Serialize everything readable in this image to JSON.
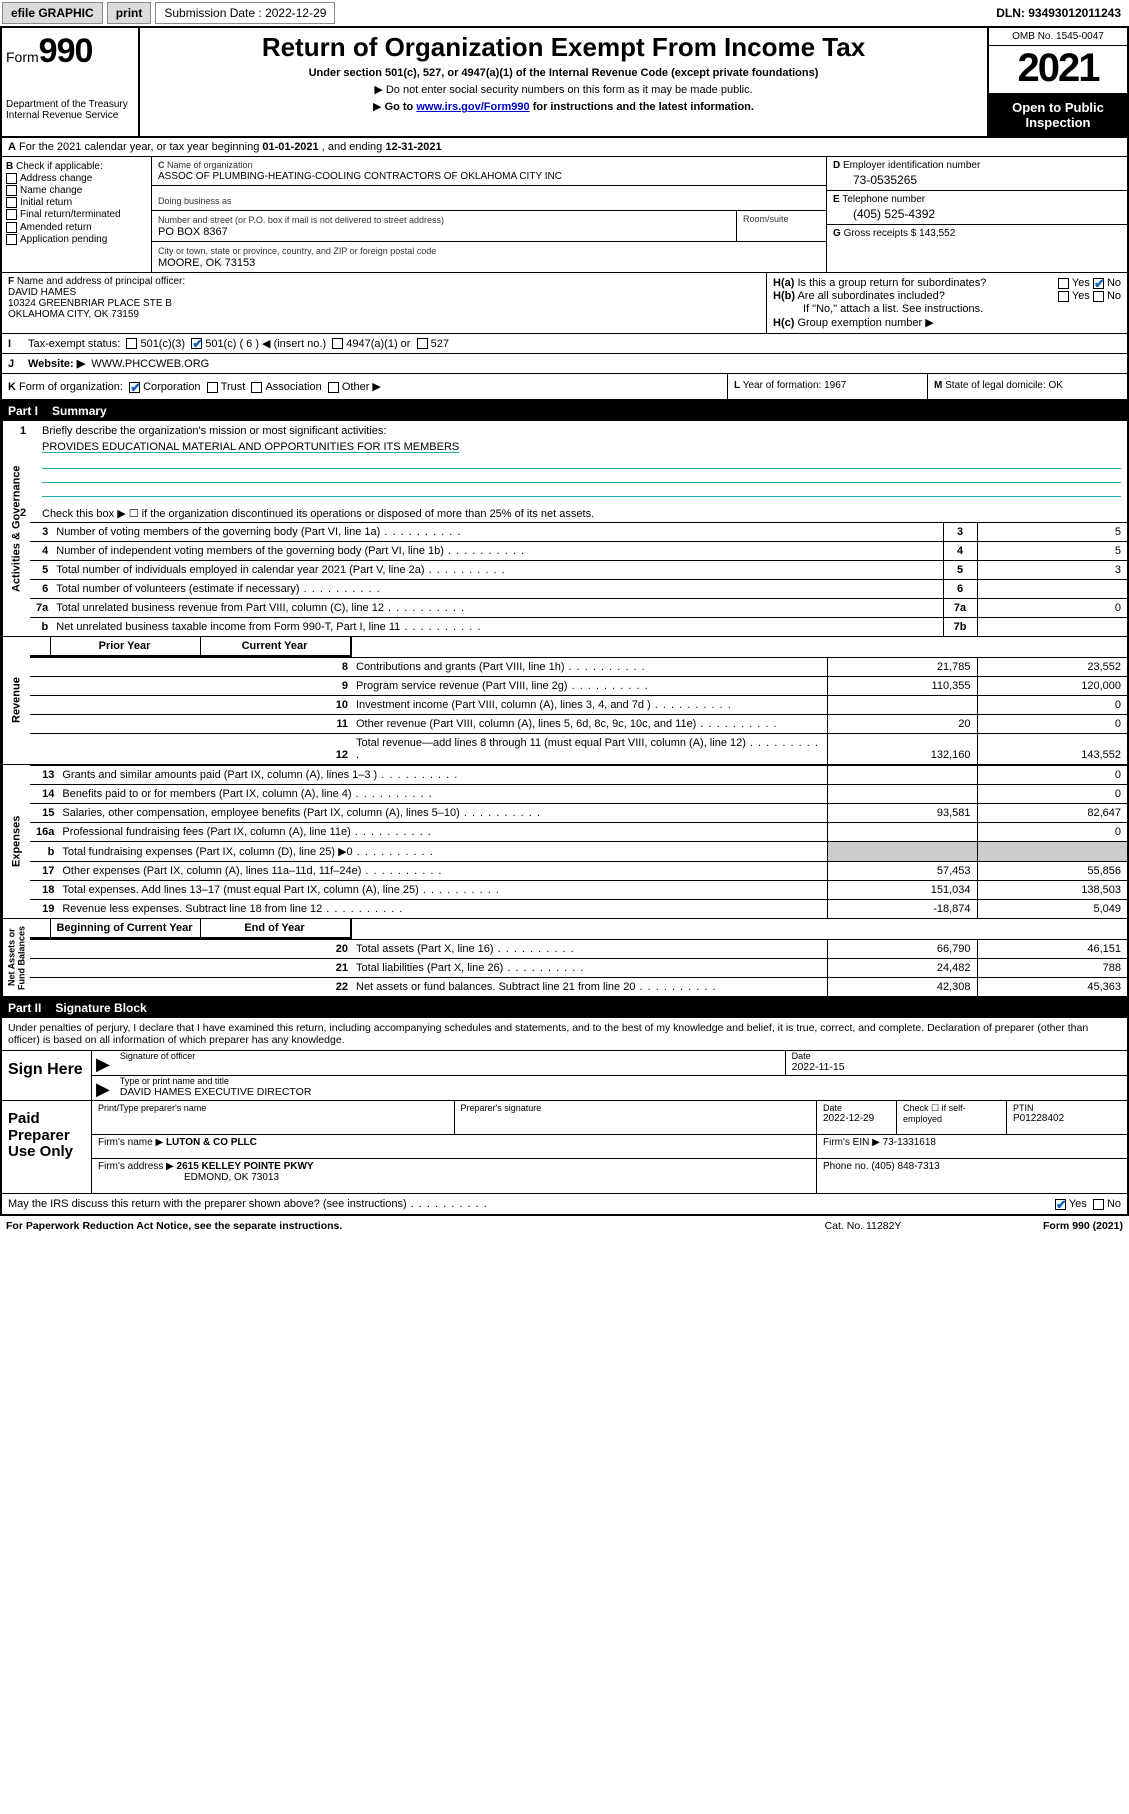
{
  "topbar": {
    "efile": "efile GRAPHIC",
    "print": "print",
    "subdate_label": "Submission Date : 2022-12-29",
    "dln": "DLN: 93493012011243"
  },
  "header": {
    "form_prefix": "Form",
    "form_no": "990",
    "dept": "Department of the Treasury\nInternal Revenue Service",
    "title": "Return of Organization Exempt From Income Tax",
    "subtitle": "Under section 501(c), 527, or 4947(a)(1) of the Internal Revenue Code (except private foundations)",
    "note1": "Do not enter social security numbers on this form as it may be made public.",
    "note2_pre": "Go to ",
    "note2_link": "www.irs.gov/Form990",
    "note2_post": " for instructions and the latest information.",
    "omb": "OMB No. 1545-0047",
    "year": "2021",
    "open": "Open to Public Inspection"
  },
  "A": {
    "text_pre": "For the 2021 calendar year, or tax year beginning ",
    "begin": "01-01-2021",
    "mid": " , and ending ",
    "end": "12-31-2021"
  },
  "B": {
    "label": "Check if applicable:",
    "opts": [
      "Address change",
      "Name change",
      "Initial return",
      "Final return/terminated",
      "Amended return",
      "Application pending"
    ]
  },
  "C": {
    "name_label": "Name of organization",
    "name": "ASSOC OF PLUMBING-HEATING-COOLING CONTRACTORS OF OKLAHOMA CITY INC",
    "dba_label": "Doing business as",
    "street_label": "Number and street (or P.O. box if mail is not delivered to street address)",
    "room_label": "Room/suite",
    "street": "PO BOX 8367",
    "city_label": "City or town, state or province, country, and ZIP or foreign postal code",
    "city": "MOORE, OK  73153"
  },
  "D": {
    "label": "Employer identification number",
    "val": "73-0535265"
  },
  "E": {
    "label": "Telephone number",
    "val": "(405) 525-4392"
  },
  "G": {
    "label": "Gross receipts $",
    "val": "143,552"
  },
  "F": {
    "label": "Name and address of principal officer:",
    "name": "DAVID HAMES",
    "addr1": "10324 GREENBRIAR PLACE STE B",
    "addr2": "OKLAHOMA CITY, OK  73159"
  },
  "H": {
    "a": "Is this a group return for subordinates?",
    "a_ans_yes": "Yes",
    "a_ans_no": "No",
    "b": "Are all subordinates included?",
    "b_note": "If \"No,\" attach a list. See instructions.",
    "c": "Group exemption number ▶"
  },
  "I": {
    "label": "Tax-exempt status:",
    "o1": "501(c)(3)",
    "o2": "501(c) ( 6 ) ◀ (insert no.)",
    "o3": "4947(a)(1) or",
    "o4": "527"
  },
  "J": {
    "label": "Website: ▶",
    "val": "WWW.PHCCWEB.ORG"
  },
  "K": {
    "label": "Form of organization:",
    "o1": "Corporation",
    "o2": "Trust",
    "o3": "Association",
    "o4": "Other ▶"
  },
  "L": {
    "label": "Year of formation:",
    "val": "1967"
  },
  "M": {
    "label": "State of legal domicile:",
    "val": "OK"
  },
  "partI": {
    "hdr_part": "Part I",
    "hdr_title": "Summary",
    "l1": "Briefly describe the organization's mission or most significant activities:",
    "mission": "PROVIDES EDUCATIONAL MATERIAL AND OPPORTUNITIES FOR ITS MEMBERS",
    "l2": "Check this box ▶ ☐  if the organization discontinued its operations or disposed of more than 25% of its net assets.",
    "vtab_gov": "Activities & Governance",
    "vtab_rev": "Revenue",
    "vtab_exp": "Expenses",
    "vtab_net": "Net Assets or Fund Balances",
    "col_py": "Prior Year",
    "col_cy": "Current Year",
    "col_boy": "Beginning of Current Year",
    "col_eoy": "End of Year",
    "rows_gov": [
      {
        "n": "3",
        "lab": "Number of voting members of the governing body (Part VI, line 1a)",
        "box": "3",
        "v": "5"
      },
      {
        "n": "4",
        "lab": "Number of independent voting members of the governing body (Part VI, line 1b)",
        "box": "4",
        "v": "5"
      },
      {
        "n": "5",
        "lab": "Total number of individuals employed in calendar year 2021 (Part V, line 2a)",
        "box": "5",
        "v": "3"
      },
      {
        "n": "6",
        "lab": "Total number of volunteers (estimate if necessary)",
        "box": "6",
        "v": ""
      },
      {
        "n": "7a",
        "lab": "Total unrelated business revenue from Part VIII, column (C), line 12",
        "box": "7a",
        "v": "0"
      },
      {
        "n": "b",
        "lab": "Net unrelated business taxable income from Form 990-T, Part I, line 11",
        "box": "7b",
        "v": ""
      }
    ],
    "rows_rev": [
      {
        "n": "8",
        "lab": "Contributions and grants (Part VIII, line 1h)",
        "py": "21,785",
        "cy": "23,552"
      },
      {
        "n": "9",
        "lab": "Program service revenue (Part VIII, line 2g)",
        "py": "110,355",
        "cy": "120,000"
      },
      {
        "n": "10",
        "lab": "Investment income (Part VIII, column (A), lines 3, 4, and 7d )",
        "py": "",
        "cy": "0"
      },
      {
        "n": "11",
        "lab": "Other revenue (Part VIII, column (A), lines 5, 6d, 8c, 9c, 10c, and 11e)",
        "py": "20",
        "cy": "0"
      },
      {
        "n": "12",
        "lab": "Total revenue—add lines 8 through 11 (must equal Part VIII, column (A), line 12)",
        "py": "132,160",
        "cy": "143,552"
      }
    ],
    "rows_exp": [
      {
        "n": "13",
        "lab": "Grants and similar amounts paid (Part IX, column (A), lines 1–3 )",
        "py": "",
        "cy": "0"
      },
      {
        "n": "14",
        "lab": "Benefits paid to or for members (Part IX, column (A), line 4)",
        "py": "",
        "cy": "0"
      },
      {
        "n": "15",
        "lab": "Salaries, other compensation, employee benefits (Part IX, column (A), lines 5–10)",
        "py": "93,581",
        "cy": "82,647"
      },
      {
        "n": "16a",
        "lab": "Professional fundraising fees (Part IX, column (A), line 11e)",
        "py": "",
        "cy": "0"
      },
      {
        "n": "b",
        "lab": "Total fundraising expenses (Part IX, column (D), line 25) ▶0",
        "py": "shade",
        "cy": "shade"
      },
      {
        "n": "17",
        "lab": "Other expenses (Part IX, column (A), lines 11a–11d, 11f–24e)",
        "py": "57,453",
        "cy": "55,856"
      },
      {
        "n": "18",
        "lab": "Total expenses. Add lines 13–17 (must equal Part IX, column (A), line 25)",
        "py": "151,034",
        "cy": "138,503"
      },
      {
        "n": "19",
        "lab": "Revenue less expenses. Subtract line 18 from line 12",
        "py": "-18,874",
        "cy": "5,049"
      }
    ],
    "rows_net": [
      {
        "n": "20",
        "lab": "Total assets (Part X, line 16)",
        "py": "66,790",
        "cy": "46,151"
      },
      {
        "n": "21",
        "lab": "Total liabilities (Part X, line 26)",
        "py": "24,482",
        "cy": "788"
      },
      {
        "n": "22",
        "lab": "Net assets or fund balances. Subtract line 21 from line 20",
        "py": "42,308",
        "cy": "45,363"
      }
    ]
  },
  "partII": {
    "hdr_part": "Part II",
    "hdr_title": "Signature Block",
    "decl": "Under penalties of perjury, I declare that I have examined this return, including accompanying schedules and statements, and to the best of my knowledge and belief, it is true, correct, and complete. Declaration of preparer (other than officer) is based on all information of which preparer has any knowledge.",
    "sign_here": "Sign Here",
    "sig_officer": "Signature of officer",
    "date_lbl": "Date",
    "sig_date": "2022-11-15",
    "nametitle_lbl": "Type or print name and title",
    "nametitle": "DAVID HAMES  EXECUTIVE DIRECTOR",
    "paid": "Paid Preparer Use Only",
    "pp_name_lbl": "Print/Type preparer's name",
    "pp_sig_lbl": "Preparer's signature",
    "pp_date_lbl": "Date",
    "pp_date": "2022-12-29",
    "pp_self_lbl": "Check ☐ if self-employed",
    "pp_ptin_lbl": "PTIN",
    "pp_ptin": "P01228402",
    "firm_name_lbl": "Firm's name    ▶",
    "firm_name": "LUTON & CO PLLC",
    "firm_ein_lbl": "Firm's EIN ▶",
    "firm_ein": "73-1331618",
    "firm_addr_lbl": "Firm's address ▶",
    "firm_addr1": "2615 KELLEY POINTE PKWY",
    "firm_addr2": "EDMOND, OK  73013",
    "phone_lbl": "Phone no.",
    "phone": "(405) 848-7313",
    "discuss": "May the IRS discuss this return with the preparer shown above? (see instructions)",
    "yes": "Yes",
    "no": "No"
  },
  "footer": {
    "l": "For Paperwork Reduction Act Notice, see the separate instructions.",
    "c": "Cat. No. 11282Y",
    "r": "Form 990 (2021)"
  }
}
